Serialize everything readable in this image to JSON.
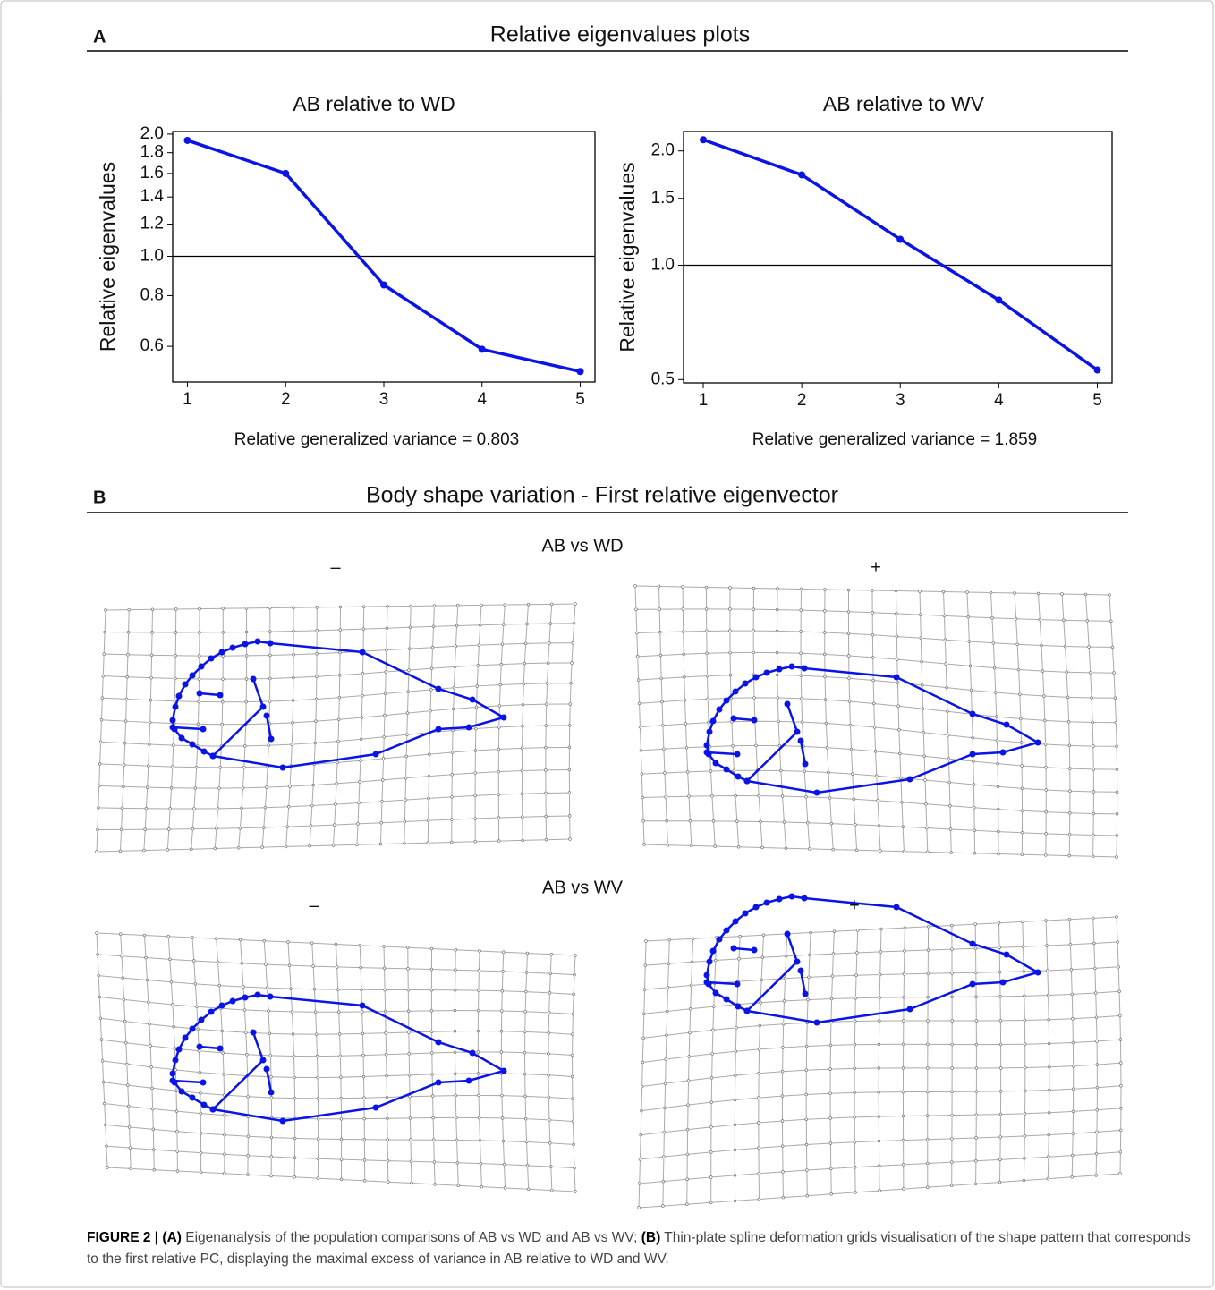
{
  "panel_a": {
    "letter": "A",
    "title": "Relative eigenvalues plots"
  },
  "chart_data": [
    {
      "type": "line",
      "title": "AB relative to WD",
      "y_label": "Relative eigenvalues",
      "annotation": "Relative generalized variance = 0.803",
      "x": [
        1,
        2,
        3,
        4,
        5
      ],
      "values": [
        1.93,
        1.6,
        0.85,
        0.59,
        0.52
      ],
      "color": "#0a14e6",
      "xlim": [
        0.85,
        5.15
      ],
      "xticks": [
        1,
        2,
        3,
        4,
        5
      ],
      "ylim": [
        0.49,
        2.03
      ],
      "yscale": "log",
      "yticks": [
        0.6,
        0.8,
        {
          "value": 1,
          "label": "1.0"
        },
        1.2,
        1.4,
        1.6,
        1.8,
        {
          "value": 2,
          "label": "2.0"
        }
      ],
      "hline": 1
    },
    {
      "type": "line",
      "title": "AB relative to WV",
      "y_label": "Relative eigenvalues",
      "annotation": "Relative generalized variance = 1.859",
      "x": [
        1,
        2,
        3,
        4,
        5
      ],
      "values": [
        2.14,
        1.73,
        1.17,
        0.81,
        0.53
      ],
      "color": "#0a14e6",
      "xlim": [
        0.8,
        5.15
      ],
      "xticks": [
        1,
        2,
        3,
        4,
        5
      ],
      "ylim": [
        0.49,
        2.25
      ],
      "yscale": "log",
      "yticks": [
        0.5,
        {
          "value": 1,
          "label": "1.0"
        },
        1.5,
        {
          "value": 2,
          "label": "2.0"
        }
      ],
      "hline": 1
    }
  ],
  "panel_b": {
    "letter": "B",
    "title": "Body shape variation - First relative eigenvector",
    "comparisons": [
      {
        "title": "AB vs WD",
        "minus": "–",
        "plus": "+"
      },
      {
        "title": "AB vs WV",
        "minus": "–",
        "plus": "+"
      }
    ]
  },
  "caption": [
    {
      "text": "FIGURE 2 | (A)",
      "bold": true
    },
    {
      "text": " Eigenanalysis of the population comparisons of AB vs WD and AB vs WV; ",
      "bold": false
    },
    {
      "text": "(B)",
      "bold": true
    },
    {
      "text": " Thin-plate spline deformation grids visualisation of the shape pattern that corresponds to the first relative PC, displaying the maximal excess of variance in AB relative to WD and WV.",
      "bold": false
    }
  ]
}
